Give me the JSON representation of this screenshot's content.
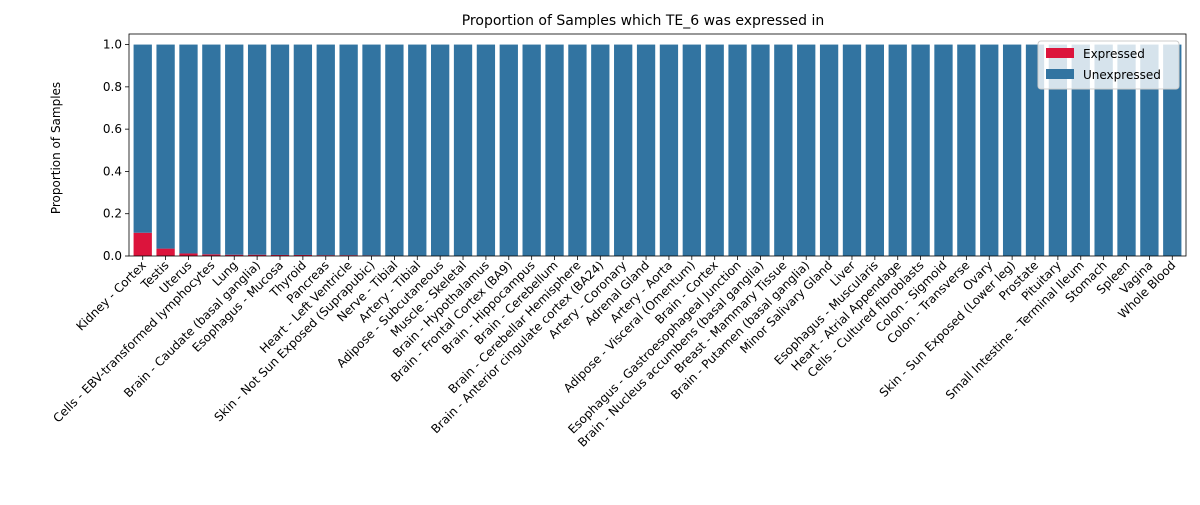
{
  "chart_data": {
    "type": "bar",
    "stacked": true,
    "title": "Proportion of Samples which TE_6 was expressed in",
    "xlabel": "",
    "ylabel": "Proportion of Samples",
    "ylim": [
      0,
      1.05
    ],
    "yticks": [
      "0.0",
      "0.2",
      "0.4",
      "0.6",
      "0.8",
      "1.0"
    ],
    "grid": false,
    "legend_position": "top-right",
    "categories": [
      "Kidney - Cortex",
      "Testis",
      "Uterus",
      "Cells - EBV-transformed lymphocytes",
      "Lung",
      "Brain - Caudate (basal ganglia)",
      "Esophagus - Mucosa",
      "Thyroid",
      "Pancreas",
      "Heart - Left Ventricle",
      "Skin - Not Sun Exposed (Suprapubic)",
      "Nerve - Tibial",
      "Artery - Tibial",
      "Adipose - Subcutaneous",
      "Muscle - Skeletal",
      "Brain - Hypothalamus",
      "Brain - Frontal Cortex (BA9)",
      "Brain - Hippocampus",
      "Brain - Cerebellum",
      "Brain - Cerebellar Hemisphere",
      "Brain - Anterior cingulate cortex (BA24)",
      "Artery - Coronary",
      "Adrenal Gland",
      "Artery - Aorta",
      "Adipose - Visceral (Omentum)",
      "Brain - Cortex",
      "Esophagus - Gastroesophageal Junction",
      "Brain - Nucleus accumbens (basal ganglia)",
      "Breast - Mammary Tissue",
      "Brain - Putamen (basal ganglia)",
      "Minor Salivary Gland",
      "Liver",
      "Esophagus - Muscularis",
      "Heart - Atrial Appendage",
      "Cells - Cultured fibroblasts",
      "Colon - Sigmoid",
      "Colon - Transverse",
      "Ovary",
      "Skin - Sun Exposed (Lower leg)",
      "Prostate",
      "Pituitary",
      "Small Intestine - Terminal Ileum",
      "Stomach",
      "Spleen",
      "Vagina",
      "Whole Blood"
    ],
    "series": [
      {
        "name": "Expressed",
        "color": "#dc143c",
        "values": [
          0.11,
          0.035,
          0.012,
          0.008,
          0.006,
          0.006,
          0.005,
          0.005,
          0.004,
          0.004,
          0.003,
          0,
          0,
          0,
          0,
          0,
          0,
          0,
          0,
          0,
          0,
          0,
          0,
          0,
          0,
          0,
          0,
          0,
          0,
          0,
          0,
          0,
          0,
          0,
          0,
          0,
          0,
          0,
          0,
          0,
          0,
          0,
          0,
          0,
          0,
          0
        ]
      },
      {
        "name": "Unexpressed",
        "color": "#3274a1",
        "values": [
          0.89,
          0.965,
          0.988,
          0.992,
          0.994,
          0.994,
          0.995,
          0.995,
          0.996,
          0.996,
          0.997,
          1,
          1,
          1,
          1,
          1,
          1,
          1,
          1,
          1,
          1,
          1,
          1,
          1,
          1,
          1,
          1,
          1,
          1,
          1,
          1,
          1,
          1,
          1,
          1,
          1,
          1,
          1,
          1,
          1,
          1,
          1,
          1,
          1,
          1,
          1
        ]
      }
    ]
  }
}
